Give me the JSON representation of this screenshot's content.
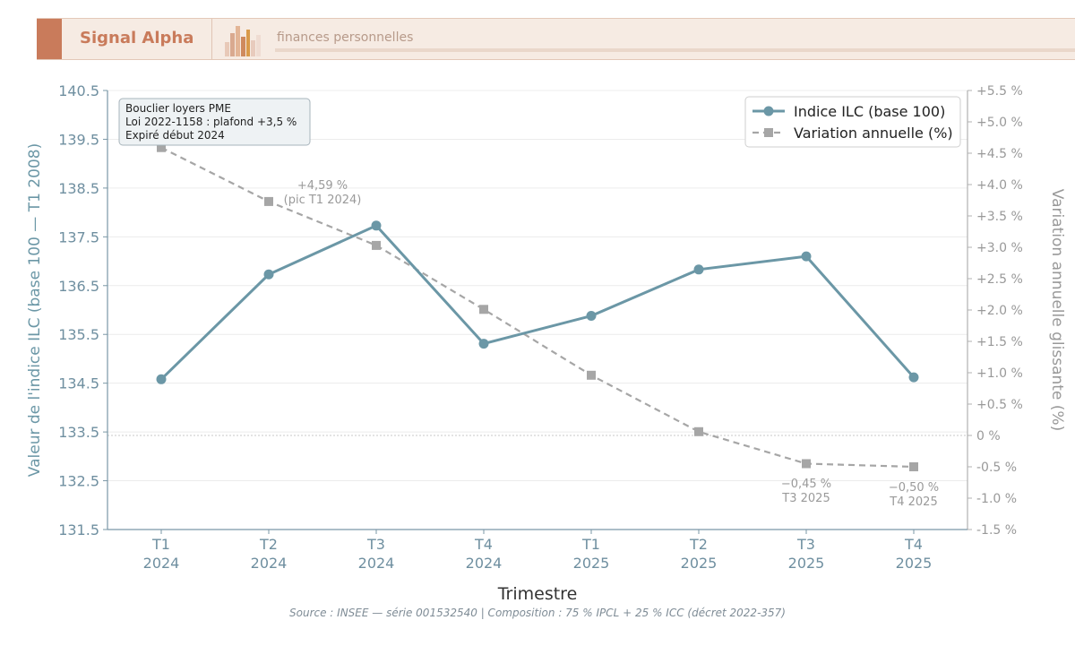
{
  "header": {
    "brand": "Signal Alpha",
    "tagline": "finances personnelles",
    "logo_icon": "bar-cluster-logo-icon",
    "accent": "#c97b5b"
  },
  "footer": {
    "source": "Source : INSEE — série 001532540 | Composition : 75 % IPCL + 25 % ICC (décret 2022-357)"
  },
  "chart_data": {
    "type": "line",
    "title": "",
    "xlabel": "Trimestre",
    "ylabel": "Valeur de l'indice ILC (base 100 — T1 2008)",
    "y2label": "Variation annuelle glissante (%)",
    "categories": [
      [
        "T1",
        "2024"
      ],
      [
        "T2",
        "2024"
      ],
      [
        "T3",
        "2024"
      ],
      [
        "T4",
        "2024"
      ],
      [
        "T1",
        "2025"
      ],
      [
        "T2",
        "2025"
      ],
      [
        "T3",
        "2025"
      ],
      [
        "T4",
        "2025"
      ]
    ],
    "ylim": [
      131.5,
      140.5
    ],
    "yticks": [
      "131.5",
      "132.5",
      "133.5",
      "134.5",
      "135.5",
      "136.5",
      "137.5",
      "138.5",
      "139.5",
      "140.5"
    ],
    "y2lim": [
      -1.5,
      5.5
    ],
    "y2ticks": [
      "-1.5 %",
      "-1.0 %",
      "-0.5 %",
      "0 %",
      "+0.5 %",
      "+1.0 %",
      "+1.5 %",
      "+2.0 %",
      "+2.5 %",
      "+3.0 %",
      "+3.5 %",
      "+4.0 %",
      "+4.5 %",
      "+5.0 %",
      "+5.5 %"
    ],
    "grid": true,
    "legend_position": "top-right",
    "series": [
      {
        "name": "Indice ILC (base 100)",
        "axis": "left",
        "style": "solid",
        "marker": "circle",
        "color": "#6b97a6",
        "values": [
          134.58,
          136.73,
          137.73,
          135.31,
          135.88,
          136.83,
          137.1,
          134.62
        ]
      },
      {
        "name": "Variation annuelle (%)",
        "axis": "right",
        "style": "dashed",
        "marker": "square",
        "color": "#a6a6a6",
        "values": [
          4.59,
          3.73,
          3.03,
          2.01,
          0.96,
          0.06,
          -0.45,
          -0.5
        ]
      }
    ],
    "annotation_box": {
      "lines": [
        "Bouclier loyers PME",
        "Loi 2022-1158 : plafond +3,5 %",
        "Expiré début 2024"
      ]
    },
    "annotations": [
      {
        "lines": [
          "+4,59 %",
          "(pic T1 2024)"
        ]
      },
      {
        "lines": [
          "−0,45 %",
          "T3 2025"
        ]
      },
      {
        "lines": [
          "−0,50 %",
          "T4 2025"
        ]
      }
    ]
  }
}
